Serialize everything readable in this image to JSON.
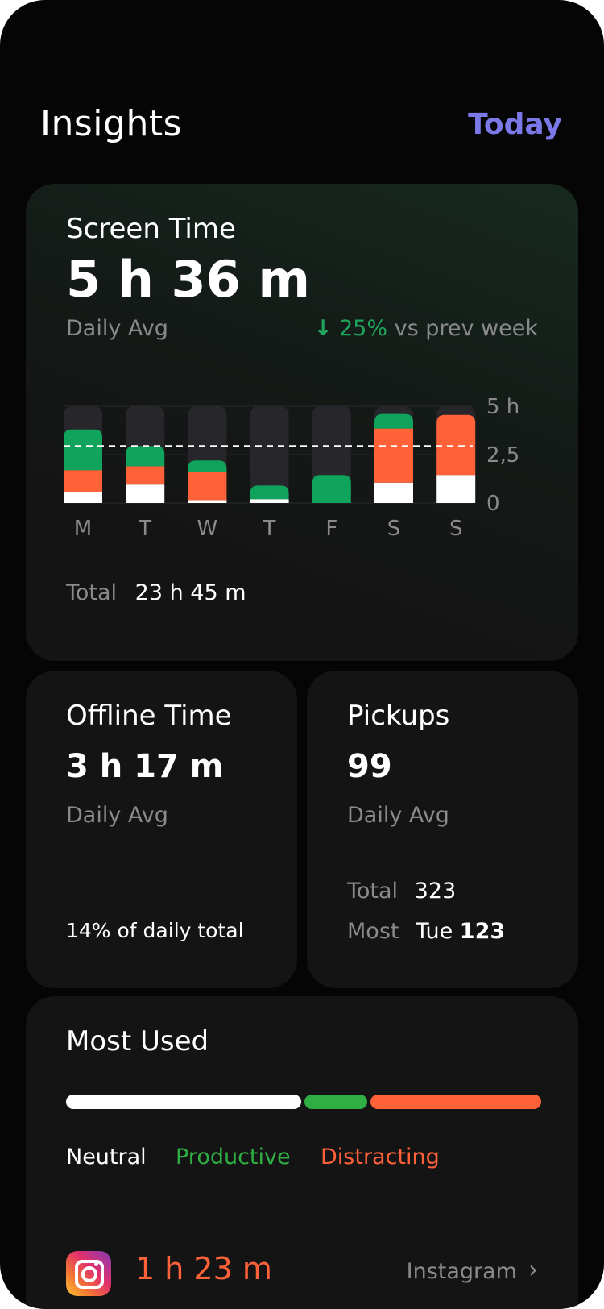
{
  "header": {
    "title": "Insights",
    "period_link": "Today"
  },
  "screen_time": {
    "title": "Screen Time",
    "value": "5 h 36 m",
    "avg_label": "Daily Avg",
    "change_arrow": "↓",
    "change_value": "25%",
    "change_suffix": "vs prev week",
    "total_label": "Total",
    "total_value": "23 h 45 m"
  },
  "colors": {
    "neutral": "#ffffff",
    "productive": "#0FA35C",
    "distracting": "#FF6238",
    "track": "#26262b",
    "accent": "#7B78E8"
  },
  "chart_data": {
    "type": "bar",
    "stacked": true,
    "categories": [
      "M",
      "T",
      "W",
      "T",
      "F",
      "S",
      "S"
    ],
    "series": [
      {
        "name": "Neutral",
        "values": [
          0.55,
          0.95,
          0.15,
          0.2,
          0,
          1.05,
          1.45
        ]
      },
      {
        "name": "Distracting",
        "values": [
          1.15,
          0.95,
          1.45,
          0,
          0,
          2.8,
          3.1
        ]
      },
      {
        "name": "Productive",
        "values": [
          2.1,
          1.05,
          0.6,
          0.7,
          1.45,
          0.75,
          0
        ]
      }
    ],
    "ylim": [
      0,
      5
    ],
    "yticks": [
      0,
      2.5,
      5
    ],
    "ytick_labels": [
      "0",
      "2,5",
      "5 h"
    ],
    "average_line": 2.95,
    "grid": true
  },
  "offline_time": {
    "title": "Offline Time",
    "value": "3 h 17 m",
    "avg_label": "Daily Avg",
    "share_text": "14% of daily total"
  },
  "pickups": {
    "title": "Pickups",
    "value": "99",
    "avg_label": "Daily Avg",
    "total_label": "Total",
    "total_value": "323",
    "most_label": "Most",
    "most_day": "Tue",
    "most_value": "123"
  },
  "most_used": {
    "title": "Most Used",
    "legend": {
      "neutral": "Neutral",
      "productive": "Productive",
      "distracting": "Distracting"
    },
    "shares": {
      "neutral": 0.51,
      "productive": 0.14,
      "distracting": 0.35
    },
    "app": {
      "time": "1 h 23 m",
      "name": "Instagram",
      "icon": "instagram-icon"
    }
  }
}
